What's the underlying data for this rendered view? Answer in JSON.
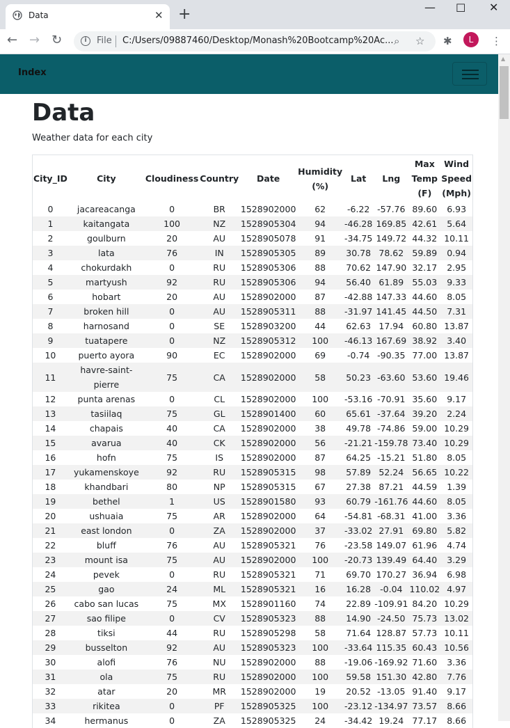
{
  "browser": {
    "tab_title": "Data",
    "file_label": "File",
    "url": "C:/Users/09887460/Desktop/Monash%20Bootcamp%20Ac...",
    "avatar_letter": "L"
  },
  "navbar": {
    "brand": "Index"
  },
  "page": {
    "title": "Data",
    "subtitle": "Weather data for each city"
  },
  "table": {
    "headers": [
      {
        "label": "City_ID"
      },
      {
        "label": "City"
      },
      {
        "label": "Cloudiness"
      },
      {
        "label": "Country"
      },
      {
        "label": "Date"
      },
      {
        "label": "Humidity (%)"
      },
      {
        "label": "Lat"
      },
      {
        "label": "Lng"
      },
      {
        "label": "Max Temp (F)"
      },
      {
        "label": "Wind Speed (Mph)"
      }
    ],
    "rows": [
      [
        "0",
        "jacareacanga",
        "0",
        "BR",
        "1528902000",
        "62",
        "-6.22",
        "-57.76",
        "89.60",
        "6.93"
      ],
      [
        "1",
        "kaitangata",
        "100",
        "NZ",
        "1528905304",
        "94",
        "-46.28",
        "169.85",
        "42.61",
        "5.64"
      ],
      [
        "2",
        "goulburn",
        "20",
        "AU",
        "1528905078",
        "91",
        "-34.75",
        "149.72",
        "44.32",
        "10.11"
      ],
      [
        "3",
        "lata",
        "76",
        "IN",
        "1528905305",
        "89",
        "30.78",
        "78.62",
        "59.89",
        "0.94"
      ],
      [
        "4",
        "chokurdakh",
        "0",
        "RU",
        "1528905306",
        "88",
        "70.62",
        "147.90",
        "32.17",
        "2.95"
      ],
      [
        "5",
        "martyush",
        "92",
        "RU",
        "1528905306",
        "94",
        "56.40",
        "61.89",
        "55.03",
        "9.33"
      ],
      [
        "6",
        "hobart",
        "20",
        "AU",
        "1528902000",
        "87",
        "-42.88",
        "147.33",
        "44.60",
        "8.05"
      ],
      [
        "7",
        "broken hill",
        "0",
        "AU",
        "1528905311",
        "88",
        "-31.97",
        "141.45",
        "44.50",
        "7.31"
      ],
      [
        "8",
        "harnosand",
        "0",
        "SE",
        "1528903200",
        "44",
        "62.63",
        "17.94",
        "60.80",
        "13.87"
      ],
      [
        "9",
        "tuatapere",
        "0",
        "NZ",
        "1528905312",
        "100",
        "-46.13",
        "167.69",
        "38.92",
        "3.40"
      ],
      [
        "10",
        "puerto ayora",
        "90",
        "EC",
        "1528902000",
        "69",
        "-0.74",
        "-90.35",
        "77.00",
        "13.87"
      ],
      [
        "11",
        "havre-saint-pierre",
        "75",
        "CA",
        "1528902000",
        "58",
        "50.23",
        "-63.60",
        "53.60",
        "19.46"
      ],
      [
        "12",
        "punta arenas",
        "0",
        "CL",
        "1528902000",
        "100",
        "-53.16",
        "-70.91",
        "35.60",
        "9.17"
      ],
      [
        "13",
        "tasiilaq",
        "75",
        "GL",
        "1528901400",
        "60",
        "65.61",
        "-37.64",
        "39.20",
        "2.24"
      ],
      [
        "14",
        "chapais",
        "40",
        "CA",
        "1528902000",
        "38",
        "49.78",
        "-74.86",
        "59.00",
        "10.29"
      ],
      [
        "15",
        "avarua",
        "40",
        "CK",
        "1528902000",
        "56",
        "-21.21",
        "-159.78",
        "73.40",
        "10.29"
      ],
      [
        "16",
        "hofn",
        "75",
        "IS",
        "1528902000",
        "87",
        "64.25",
        "-15.21",
        "51.80",
        "8.05"
      ],
      [
        "17",
        "yukamenskoye",
        "92",
        "RU",
        "1528905315",
        "98",
        "57.89",
        "52.24",
        "56.65",
        "10.22"
      ],
      [
        "18",
        "khandbari",
        "80",
        "NP",
        "1528905315",
        "67",
        "27.38",
        "87.21",
        "44.59",
        "1.39"
      ],
      [
        "19",
        "bethel",
        "1",
        "US",
        "1528901580",
        "93",
        "60.79",
        "-161.76",
        "44.60",
        "8.05"
      ],
      [
        "20",
        "ushuaia",
        "75",
        "AR",
        "1528902000",
        "64",
        "-54.81",
        "-68.31",
        "41.00",
        "3.36"
      ],
      [
        "21",
        "east london",
        "0",
        "ZA",
        "1528902000",
        "37",
        "-33.02",
        "27.91",
        "69.80",
        "5.82"
      ],
      [
        "22",
        "bluff",
        "76",
        "AU",
        "1528905321",
        "76",
        "-23.58",
        "149.07",
        "61.96",
        "4.74"
      ],
      [
        "23",
        "mount isa",
        "75",
        "AU",
        "1528902000",
        "100",
        "-20.73",
        "139.49",
        "64.40",
        "3.29"
      ],
      [
        "24",
        "pevek",
        "0",
        "RU",
        "1528905321",
        "71",
        "69.70",
        "170.27",
        "36.94",
        "6.98"
      ],
      [
        "25",
        "gao",
        "24",
        "ML",
        "1528905321",
        "16",
        "16.28",
        "-0.04",
        "110.02",
        "4.97"
      ],
      [
        "26",
        "cabo san lucas",
        "75",
        "MX",
        "1528901160",
        "74",
        "22.89",
        "-109.91",
        "84.20",
        "10.29"
      ],
      [
        "27",
        "sao filipe",
        "0",
        "CV",
        "1528905323",
        "88",
        "14.90",
        "-24.50",
        "75.73",
        "13.02"
      ],
      [
        "28",
        "tiksi",
        "44",
        "RU",
        "1528905298",
        "58",
        "71.64",
        "128.87",
        "57.73",
        "10.11"
      ],
      [
        "29",
        "busselton",
        "92",
        "AU",
        "1528905323",
        "100",
        "-33.64",
        "115.35",
        "60.43",
        "10.56"
      ],
      [
        "30",
        "alofi",
        "76",
        "NU",
        "1528902000",
        "88",
        "-19.06",
        "-169.92",
        "71.60",
        "3.36"
      ],
      [
        "31",
        "ola",
        "75",
        "RU",
        "1528902000",
        "100",
        "59.58",
        "151.30",
        "42.80",
        "7.76"
      ],
      [
        "32",
        "atar",
        "20",
        "MR",
        "1528902000",
        "19",
        "20.52",
        "-13.05",
        "91.40",
        "9.17"
      ],
      [
        "33",
        "rikitea",
        "0",
        "PF",
        "1528905325",
        "100",
        "-23.12",
        "-134.97",
        "73.57",
        "8.66"
      ],
      [
        "34",
        "hermanus",
        "0",
        "ZA",
        "1528905325",
        "24",
        "-34.42",
        "19.24",
        "77.17",
        "8.66"
      ]
    ]
  }
}
